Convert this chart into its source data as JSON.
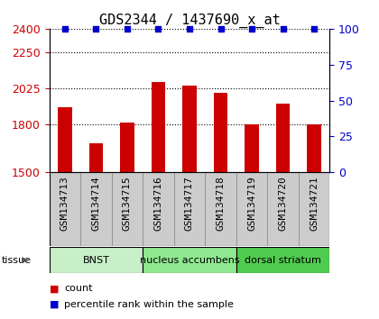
{
  "title": "GDS2344 / 1437690_x_at",
  "samples": [
    "GSM134713",
    "GSM134714",
    "GSM134715",
    "GSM134716",
    "GSM134717",
    "GSM134718",
    "GSM134719",
    "GSM134720",
    "GSM134721"
  ],
  "counts": [
    1910,
    1680,
    1810,
    2065,
    2045,
    2000,
    1800,
    1930,
    1800
  ],
  "percentiles": [
    100,
    100,
    100,
    100,
    100,
    100,
    100,
    100,
    100
  ],
  "ylim_left": [
    1500,
    2400
  ],
  "ylim_right": [
    0,
    100
  ],
  "yticks_left": [
    1500,
    1800,
    2025,
    2250,
    2400
  ],
  "yticks_right": [
    0,
    25,
    50,
    75,
    100
  ],
  "tissue_groups": [
    {
      "label": "BNST",
      "start": 0,
      "end": 2,
      "color": "#c8f0c8"
    },
    {
      "label": "nucleus accumbens",
      "start": 3,
      "end": 5,
      "color": "#90e890"
    },
    {
      "label": "dorsal striatum",
      "start": 6,
      "end": 8,
      "color": "#50cc50"
    }
  ],
  "bar_color": "#cc0000",
  "dot_color": "#0000cc",
  "bar_width": 0.45,
  "grid_color": "#000000",
  "bg_color": "#ffffff",
  "tick_label_color_left": "#cc0000",
  "tick_label_color_right": "#0000cc",
  "title_fontsize": 11,
  "tick_fontsize": 9,
  "sample_label_fontsize": 8,
  "legend_count": "count",
  "legend_percentile": "percentile rank within the sample",
  "tissue_label": "tissue"
}
